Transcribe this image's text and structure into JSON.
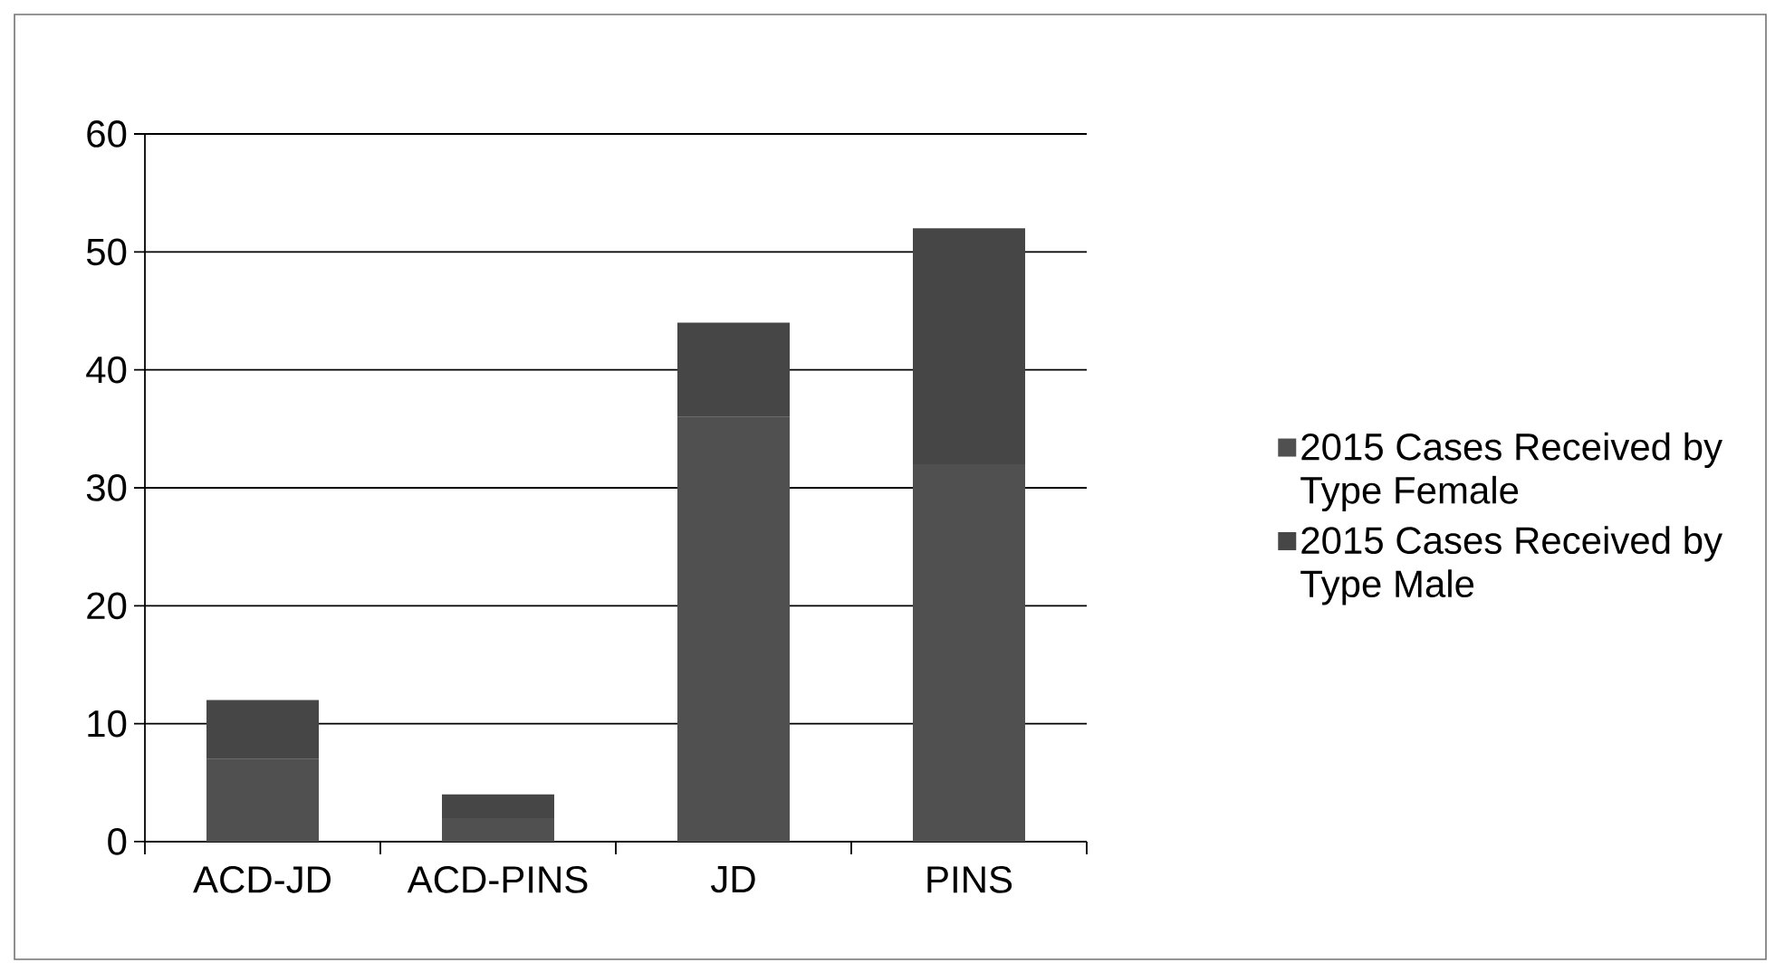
{
  "chart_data": {
    "type": "bar",
    "stacked": true,
    "categories": [
      "ACD-JD",
      "ACD-PINS",
      "JD",
      "PINS"
    ],
    "series": [
      {
        "name": "2015 Cases Received by Type Female",
        "color": "#505050",
        "values": [
          7,
          2,
          36,
          32
        ]
      },
      {
        "name": "2015 Cases Received by Type Male",
        "color": "#464646",
        "values": [
          5,
          2,
          8,
          20
        ]
      }
    ],
    "ylim": [
      0,
      60
    ],
    "yticks": [
      0,
      10,
      20,
      30,
      40,
      50,
      60
    ],
    "grid": "y",
    "legend": "right"
  }
}
